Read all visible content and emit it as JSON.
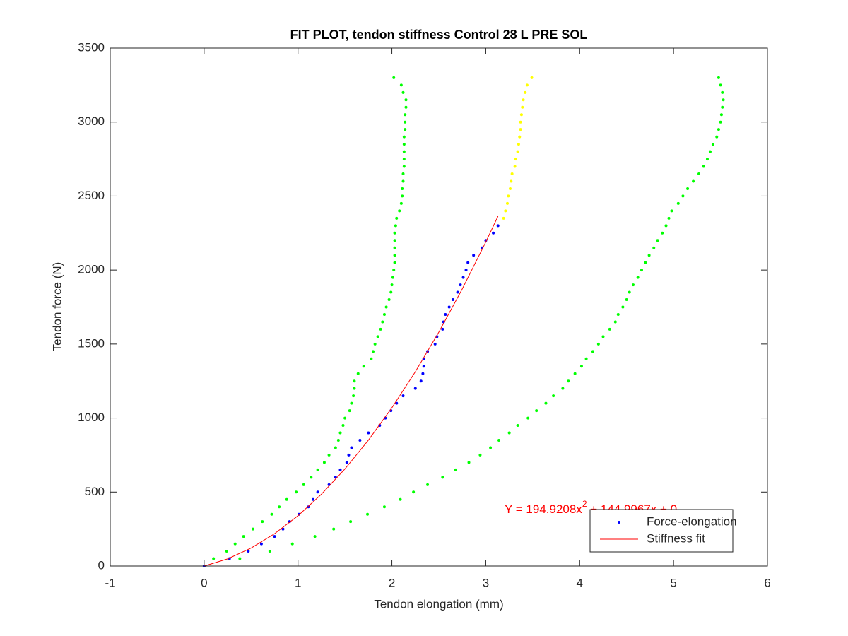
{
  "chart_data": {
    "type": "scatter",
    "title": "FIT PLOT, tendon stiffness Control 28 L PRE SOL",
    "xlabel": "Tendon elongation (mm)",
    "ylabel": "Tendon force (N)",
    "xlim": [
      -1,
      6
    ],
    "ylim": [
      0,
      3500
    ],
    "xticks": [
      -1,
      0,
      1,
      2,
      3,
      4,
      5,
      6
    ],
    "yticks": [
      0,
      500,
      1000,
      1500,
      2000,
      2500,
      3000,
      3500
    ],
    "grid": false,
    "legend_position": "bottom-right",
    "annotation": {
      "text": "Y = 194.9208x",
      "superscript": "2",
      "rest": " + 144.9967x + 0",
      "color": "#ff0000"
    },
    "series": [
      {
        "color": "#00ff00",
        "x": [
          0,
          0.1,
          0.24,
          0.33,
          0.42,
          0.52,
          0.62,
          0.72,
          0.8,
          0.88,
          0.98,
          1.06,
          1.14,
          1.21,
          1.28,
          1.33,
          1.4,
          1.43,
          1.45,
          1.48,
          1.5,
          1.55,
          1.57,
          1.59,
          1.6,
          1.6,
          1.64,
          1.7,
          1.78,
          1.8,
          1.82,
          1.85,
          1.88,
          1.9,
          1.92,
          1.94,
          1.97,
          1.99,
          2.0,
          2.01,
          2.02,
          2.03,
          2.03,
          2.03,
          2.03,
          2.03,
          2.04,
          2.05,
          2.08,
          2.1,
          2.11,
          2.11,
          2.12,
          2.12,
          2.13,
          2.13,
          2.13,
          2.13,
          2.13,
          2.14,
          2.14,
          2.14,
          2.15,
          2.15,
          2.12,
          2.1,
          2.02
        ],
        "values": [
          0,
          50,
          100,
          150,
          200,
          250,
          300,
          350,
          400,
          450,
          500,
          550,
          600,
          650,
          700,
          750,
          800,
          850,
          900,
          950,
          1000,
          1050,
          1100,
          1150,
          1200,
          1250,
          1300,
          1350,
          1400,
          1450,
          1500,
          1550,
          1600,
          1650,
          1700,
          1750,
          1800,
          1850,
          1900,
          1950,
          2000,
          2050,
          2100,
          2150,
          2200,
          2250,
          2300,
          2350,
          2400,
          2450,
          2500,
          2550,
          2600,
          2650,
          2700,
          2750,
          2800,
          2850,
          2900,
          2950,
          3000,
          3050,
          3100,
          3150,
          3200,
          3250,
          3300
        ]
      },
      {
        "color": "#00ff00",
        "x": [
          0,
          0.38,
          0.7,
          0.94,
          1.18,
          1.38,
          1.56,
          1.74,
          1.92,
          2.09,
          2.23,
          2.38,
          2.54,
          2.68,
          2.82,
          2.94,
          3.05,
          3.14,
          3.25,
          3.34,
          3.45,
          3.54,
          3.64,
          3.72,
          3.82,
          3.88,
          3.95,
          4.02,
          4.07,
          4.14,
          4.2,
          4.25,
          4.32,
          4.38,
          4.41,
          4.46,
          4.5,
          4.53,
          4.57,
          4.62,
          4.66,
          4.7,
          4.74,
          4.79,
          4.83,
          4.88,
          4.92,
          4.95,
          4.98,
          5.05,
          5.1,
          5.15,
          5.21,
          5.27,
          5.32,
          5.36,
          5.39,
          5.42,
          5.46,
          5.48,
          5.5,
          5.51,
          5.52,
          5.53,
          5.52,
          5.5,
          5.48
        ],
        "values": [
          0,
          50,
          100,
          150,
          200,
          250,
          300,
          350,
          400,
          450,
          500,
          550,
          600,
          650,
          700,
          750,
          800,
          850,
          900,
          950,
          1000,
          1050,
          1100,
          1150,
          1200,
          1250,
          1300,
          1350,
          1400,
          1450,
          1500,
          1550,
          1600,
          1650,
          1700,
          1750,
          1800,
          1850,
          1900,
          1950,
          2000,
          2050,
          2100,
          2150,
          2200,
          2250,
          2300,
          2350,
          2400,
          2450,
          2500,
          2550,
          2600,
          2650,
          2700,
          2750,
          2800,
          2850,
          2900,
          2950,
          3000,
          3050,
          3100,
          3150,
          3200,
          3250,
          3300
        ]
      },
      {
        "color": "#ffff00",
        "x": [
          3.19,
          3.21,
          3.23,
          3.24,
          3.26,
          3.27,
          3.28,
          3.31,
          3.32,
          3.34,
          3.35,
          3.36,
          3.37,
          3.37,
          3.38,
          3.39,
          3.4,
          3.42,
          3.44,
          3.49
        ],
        "values": [
          2350,
          2400,
          2450,
          2500,
          2550,
          2600,
          2650,
          2700,
          2750,
          2800,
          2850,
          2900,
          2950,
          3000,
          3050,
          3100,
          3150,
          3200,
          3250,
          3300
        ]
      },
      {
        "name": "Force-elongation",
        "color": "#0000ff",
        "x": [
          0,
          0.27,
          0.47,
          0.61,
          0.75,
          0.84,
          0.91,
          1.01,
          1.11,
          1.16,
          1.21,
          1.33,
          1.4,
          1.45,
          1.52,
          1.54,
          1.57,
          1.66,
          1.75,
          1.87,
          1.93,
          1.99,
          2.05,
          2.12,
          2.25,
          2.31,
          2.33,
          2.34,
          2.34,
          2.38,
          2.46,
          2.48,
          2.54,
          2.55,
          2.57,
          2.61,
          2.65,
          2.7,
          2.73,
          2.76,
          2.79,
          2.81,
          2.87,
          2.96,
          3.0,
          3.08,
          3.13
        ],
        "values": [
          0,
          50,
          100,
          150,
          200,
          250,
          300,
          350,
          400,
          450,
          500,
          550,
          600,
          650,
          700,
          750,
          800,
          850,
          900,
          950,
          1000,
          1050,
          1100,
          1150,
          1200,
          1250,
          1300,
          1350,
          1400,
          1450,
          1500,
          1550,
          1600,
          1650,
          1700,
          1750,
          1800,
          1850,
          1900,
          1950,
          2000,
          2050,
          2100,
          2150,
          2200,
          2250,
          2300
        ]
      },
      {
        "name": "Stiffness fit",
        "color": "#ff0000",
        "style": "line",
        "x": [
          0,
          0.25,
          0.5,
          0.75,
          1,
          1.25,
          1.5,
          1.75,
          2,
          2.25,
          2.5,
          2.75,
          3,
          3.13
        ],
        "values": [
          0,
          48.43,
          121.23,
          218.39,
          339.92,
          485.81,
          656.07,
          850.68,
          1069.68,
          1313.03,
          1580.75,
          1872.83,
          2189.28,
          2363.47
        ]
      }
    ]
  }
}
